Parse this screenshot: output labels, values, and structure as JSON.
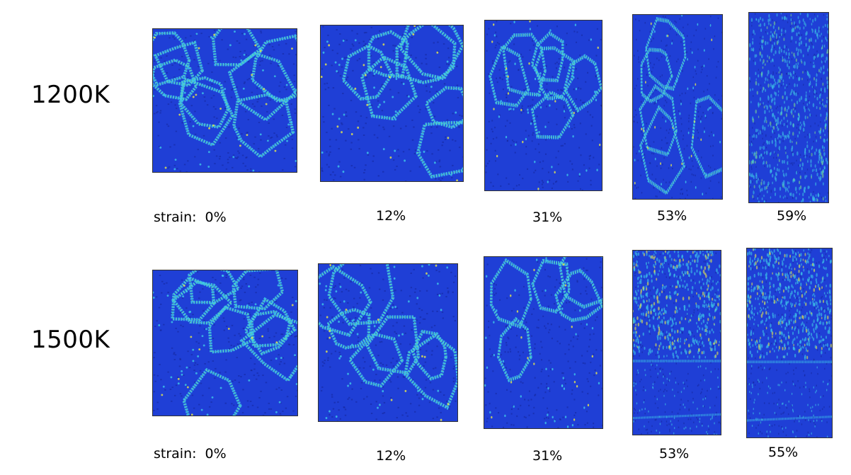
{
  "rows": [
    {
      "temperature": "1200K",
      "strain_label": "strain:",
      "snapshots": [
        {
          "strain": "0%",
          "style": "grains",
          "grains": 9
        },
        {
          "strain": "12%",
          "style": "grains",
          "grains": 7
        },
        {
          "strain": "31%",
          "style": "grains",
          "grains": 6
        },
        {
          "strain": "53%",
          "style": "grains",
          "grains": 5
        },
        {
          "strain": "59%",
          "style": "amorphous",
          "grains": 0
        }
      ]
    },
    {
      "temperature": "1500K",
      "strain_label": "strain:",
      "snapshots": [
        {
          "strain": "0%",
          "style": "grains",
          "grains": 9
        },
        {
          "strain": "12%",
          "style": "grains",
          "grains": 7
        },
        {
          "strain": "31%",
          "style": "grains",
          "grains": 5
        },
        {
          "strain": "53%",
          "style": "banded",
          "grains": 0
        },
        {
          "strain": "55%",
          "style": "banded",
          "grains": 0
        }
      ]
    }
  ],
  "colors": {
    "atom_bulk": "#1f3fd6",
    "atom_dark": "#15289e",
    "boundary_cyan": "#3ec8e8",
    "boundary_green": "#7fe08a",
    "boundary_yellow": "#e8e84a"
  }
}
